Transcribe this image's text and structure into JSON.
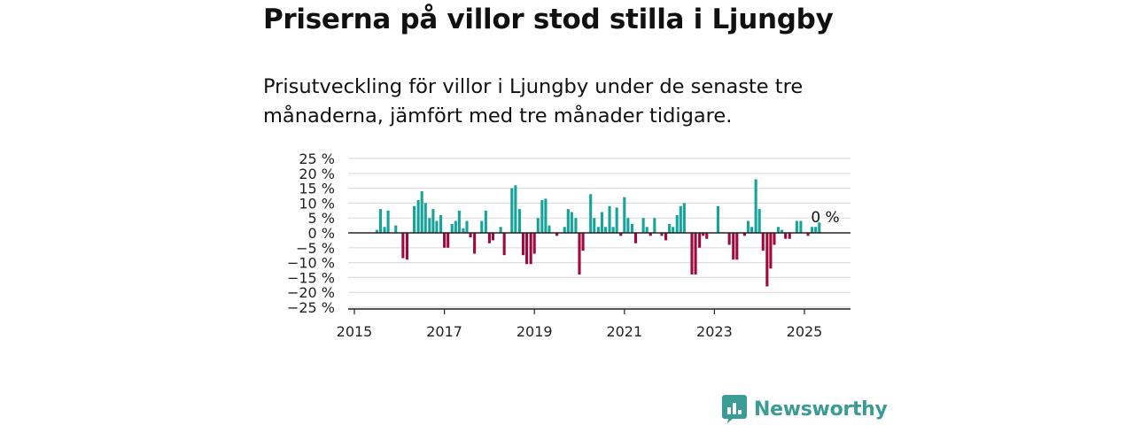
{
  "title": "Priserna på villor stod stilla i Ljungby",
  "subtitle": "Prisutveckling för villor i Ljungby under de senaste tre månaderna, jämfört med tre månader tidigare.",
  "brand": {
    "name": "Newsworthy",
    "icon": "newsworthy-logo-icon"
  },
  "colors": {
    "positive": "#16a39a",
    "negative": "#9e0a3d",
    "brand": "#3a9d95",
    "grid": "#dddddd"
  },
  "chart_data": {
    "type": "bar",
    "title": "Priserna på villor stod stilla i Ljungby",
    "ylim": [
      -25,
      25
    ],
    "xlim": [
      2015,
      2026
    ],
    "y_ticks": [
      25,
      20,
      15,
      10,
      5,
      0,
      -5,
      -10,
      -15,
      -20,
      -25
    ],
    "y_tick_labels": [
      "25 %",
      "20 %",
      "15 %",
      "10 %",
      "5 %",
      "0 %",
      "−5 %",
      "−10 %",
      "−15 %",
      "−20 %",
      "−25 %"
    ],
    "x_ticks": [
      2015,
      2017,
      2019,
      2021,
      2023,
      2025
    ],
    "x_tick_labels": [
      "2015",
      "2017",
      "2019",
      "2021",
      "2023",
      "2025"
    ],
    "grid": "horizontal",
    "end_label": "0 %",
    "series": [
      {
        "x": [
          2015.5,
          2015.58,
          2015.67,
          2015.75,
          2015.83,
          2015.92,
          2016.0,
          2016.08,
          2016.17,
          2016.25,
          2016.33,
          2016.42,
          2016.5,
          2016.58,
          2016.67,
          2016.75,
          2016.83,
          2016.92,
          2017.0,
          2017.08,
          2017.17,
          2017.25,
          2017.33,
          2017.42,
          2017.5,
          2017.58,
          2017.67,
          2017.75,
          2017.83,
          2017.92,
          2018.0,
          2018.08,
          2018.17,
          2018.25,
          2018.33,
          2018.42,
          2018.5,
          2018.58,
          2018.67,
          2018.75,
          2018.83,
          2018.92,
          2019.0,
          2019.08,
          2019.17,
          2019.25,
          2019.33,
          2019.42,
          2019.5,
          2019.58,
          2019.67,
          2019.75,
          2019.83,
          2019.92,
          2020.0,
          2020.08,
          2020.17,
          2020.25,
          2020.33,
          2020.42,
          2020.5,
          2020.58,
          2020.67,
          2020.75,
          2020.83,
          2020.92,
          2021.0,
          2021.08,
          2021.17,
          2021.25,
          2021.33,
          2021.42,
          2021.5,
          2021.58,
          2021.67,
          2021.75,
          2021.83,
          2021.92,
          2022.0,
          2022.08,
          2022.17,
          2022.25,
          2022.33,
          2022.42,
          2022.5,
          2022.58,
          2022.67,
          2022.75,
          2022.83,
          2022.92,
          2023.0,
          2023.08,
          2023.17,
          2023.25,
          2023.33,
          2023.42,
          2023.5,
          2023.58,
          2023.67,
          2023.75,
          2023.83,
          2023.92,
          2024.0,
          2024.08,
          2024.17,
          2024.25,
          2024.33,
          2024.42,
          2024.5,
          2024.58,
          2024.67,
          2024.75,
          2024.83,
          2024.92,
          2025.0,
          2025.08,
          2025.17,
          2025.25,
          2025.33,
          2025.42
        ],
        "values": [
          1,
          8,
          2,
          7.5,
          0,
          2.5,
          0,
          -8.5,
          -9,
          0,
          9,
          11,
          14,
          10,
          5,
          8,
          4,
          6,
          -5,
          -5,
          3,
          4,
          7.5,
          1.5,
          4,
          -1.5,
          -7,
          0,
          4,
          7.5,
          -3.5,
          -2.5,
          0,
          2,
          -7.5,
          0,
          15,
          16,
          8,
          -7.5,
          -10.5,
          -10.5,
          -7,
          5,
          11,
          11.5,
          2.5,
          0,
          -1,
          0,
          2,
          8,
          7,
          5,
          -14,
          -6,
          0,
          13,
          5,
          2,
          7,
          2,
          9,
          2,
          8.5,
          -1,
          12,
          5,
          3,
          -3.5,
          0,
          5,
          2,
          -1,
          5,
          0,
          -1,
          -2.5,
          3,
          2,
          6,
          9,
          10,
          0,
          -14,
          -14,
          -5,
          -1,
          -2,
          0,
          0,
          9,
          0,
          0,
          -4,
          -9,
          -9,
          0,
          -1,
          4,
          2,
          18,
          8,
          -6,
          -18,
          -12,
          -4,
          2,
          1,
          -2,
          -2,
          0,
          4,
          4,
          0,
          -1,
          2,
          2,
          3.5,
          0
        ]
      }
    ]
  }
}
